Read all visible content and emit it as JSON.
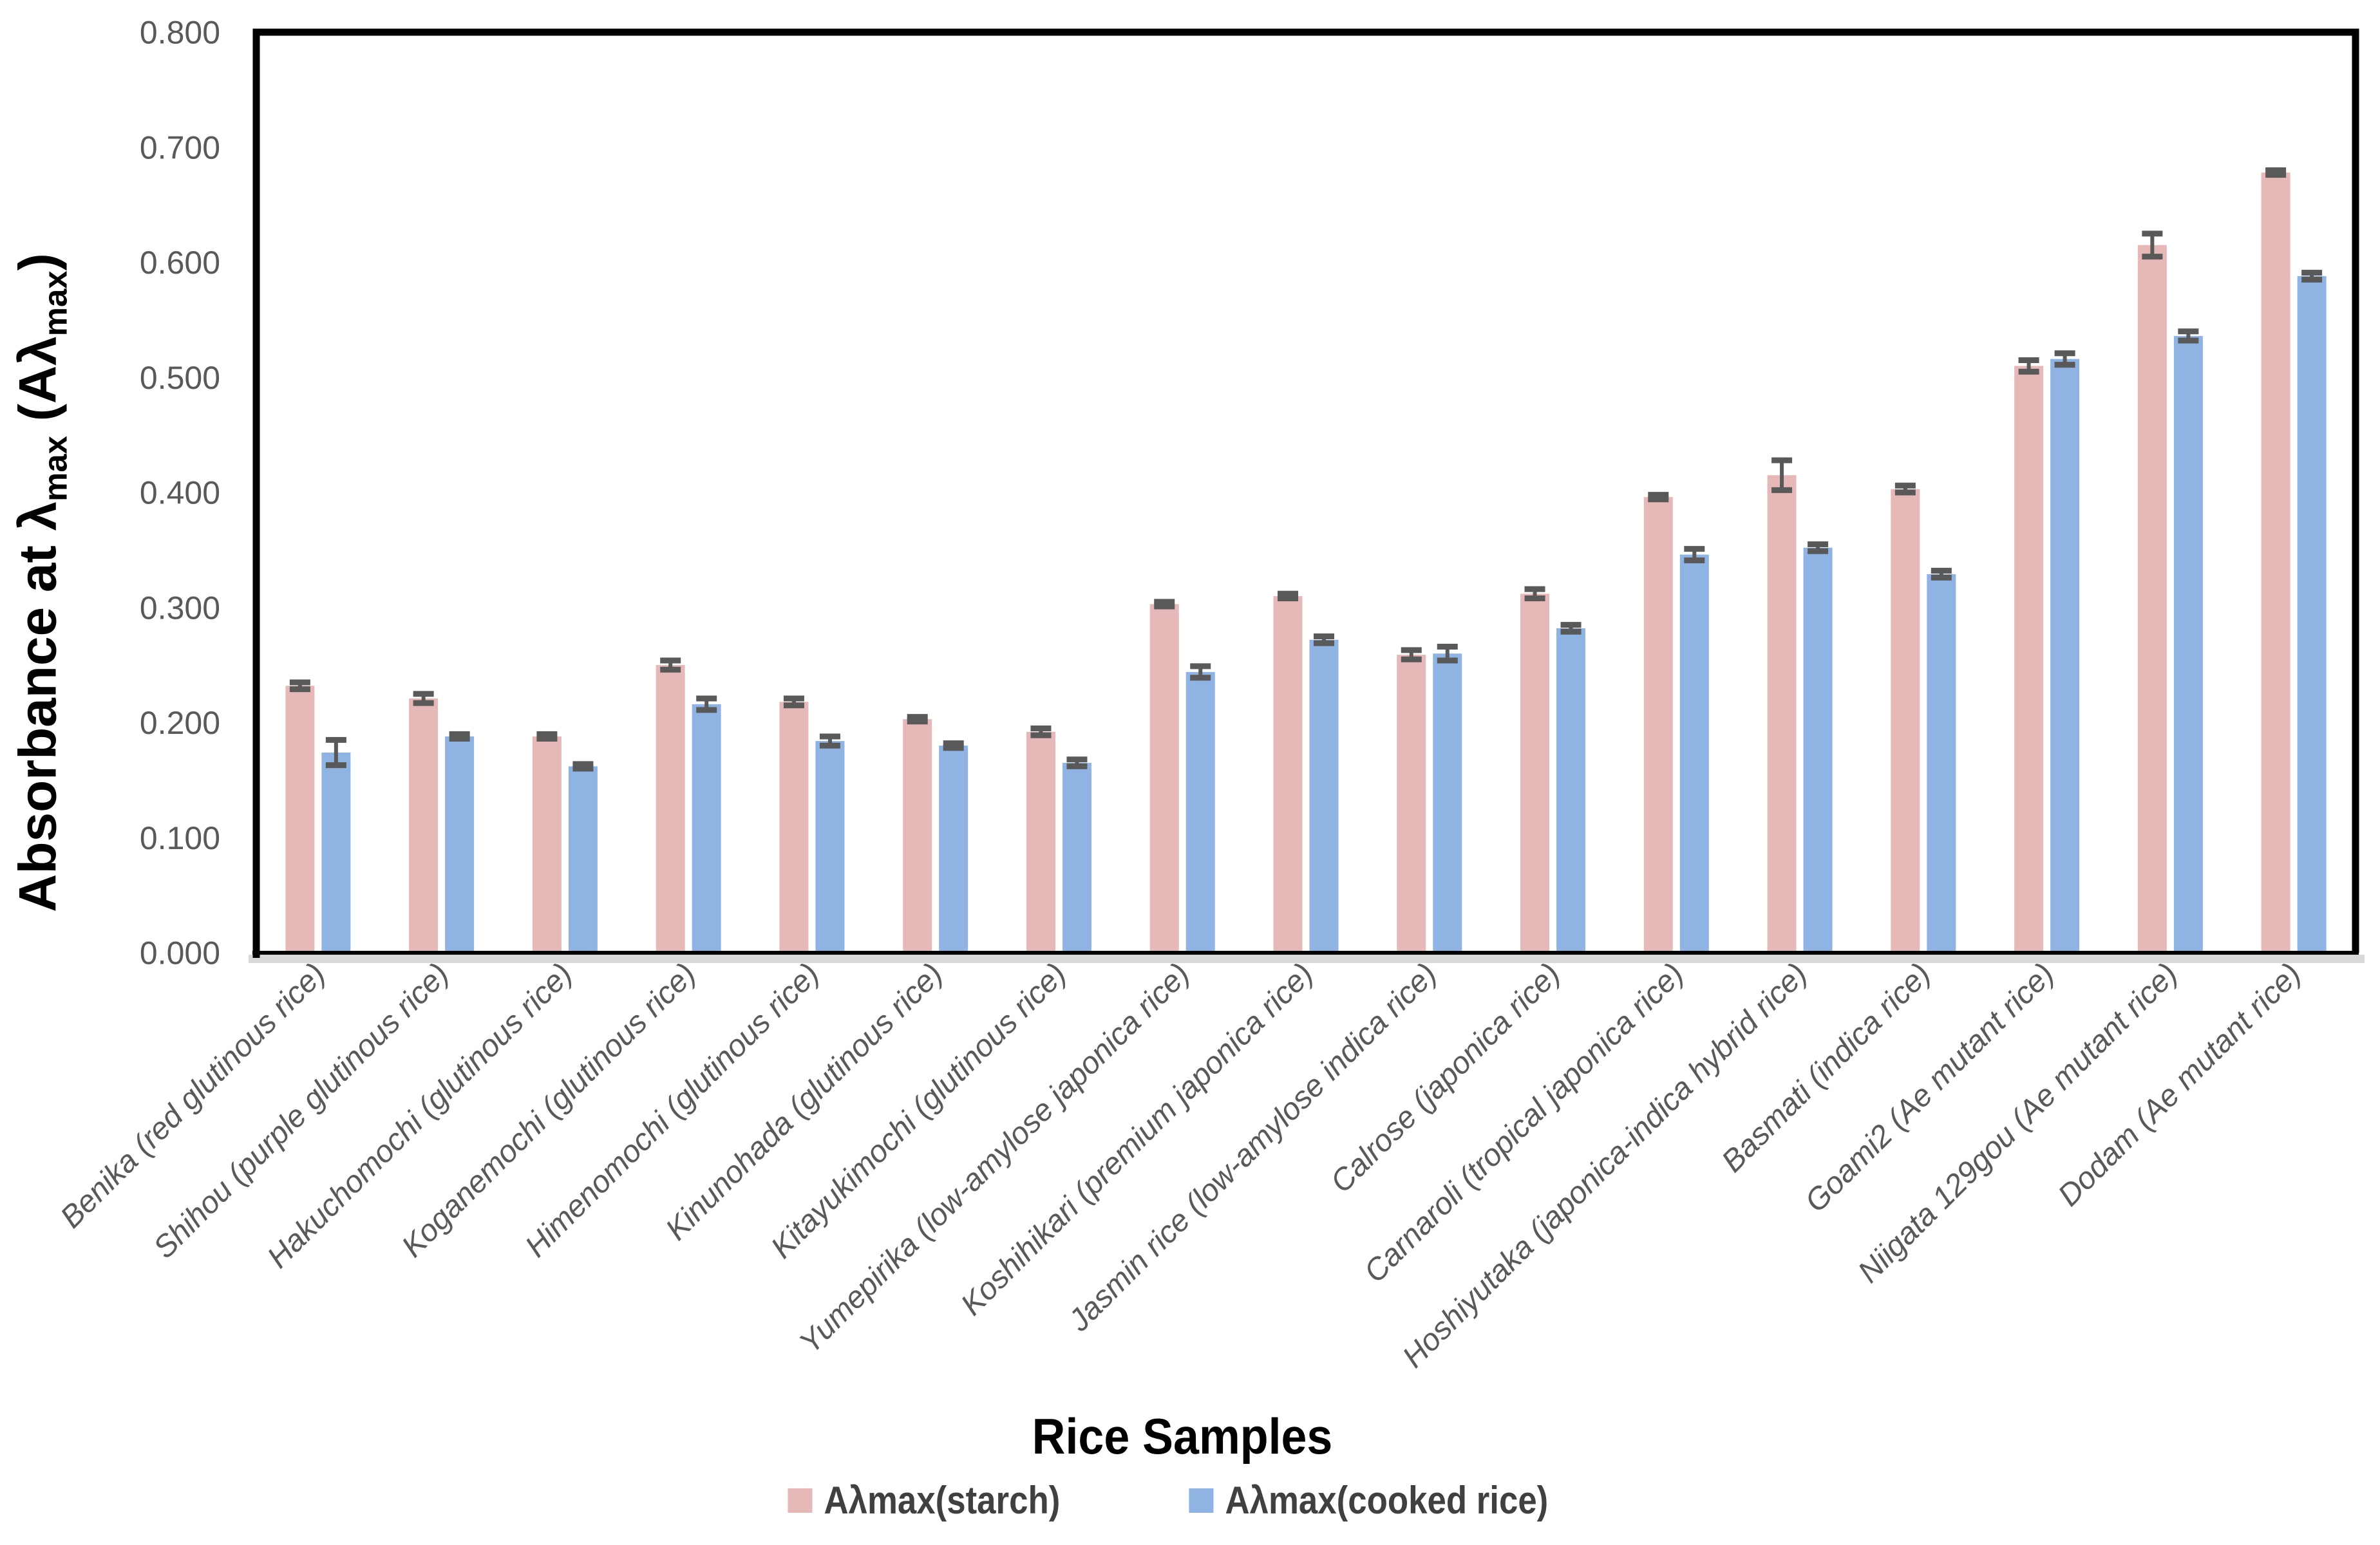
{
  "chart_data": {
    "type": "bar",
    "title": "",
    "xlabel": "Rice Samples",
    "ylabel": {
      "prefix": "Absorbance at λ",
      "sub1": "max",
      "mid": " (Aλ",
      "sub2": "max",
      "suffix": ")"
    },
    "ylim": [
      0.0,
      0.8
    ],
    "ytick_step": 0.1,
    "ytick_decimals": 3,
    "grid": false,
    "legend_position": "bottom",
    "categories": [
      "Benika (red glutinous rice)",
      "Shihou (purple glutinous rice)",
      "Hakuchomochi (glutinous rice)",
      "Koganemochi (glutinous rice)",
      "Himenomochi (glutinous rice)",
      "Kinunohada (glutinous rice)",
      "Kitayukimochi (glutinous rice)",
      "Yumepirika (low-amylose japonica rice)",
      "Koshihikari (premium japonica rice)",
      "Jasmin rice (low-amylose indica rice)",
      "Calrose (japonica rice)",
      "Carnaroli (tropical japonica rice)",
      "Hoshiyutaka (japonica-indica hybrid rice)",
      "Basmati (indica rice)",
      "Goami2 (Ae mutant rice)",
      "Niigata 129gou (Ae mutant rice)",
      "Dodam (Ae mutant rice)"
    ],
    "series": [
      {
        "name": "Aλmax(starch)",
        "color": "#E6B9B8",
        "values": [
          0.232,
          0.221,
          0.188,
          0.25,
          0.218,
          0.203,
          0.192,
          0.303,
          0.31,
          0.259,
          0.312,
          0.396,
          0.415,
          0.403,
          0.51,
          0.615,
          0.678
        ],
        "errors": [
          0.003,
          0.004,
          0.002,
          0.004,
          0.003,
          0.002,
          0.003,
          0.002,
          0.002,
          0.004,
          0.004,
          0.002,
          0.013,
          0.003,
          0.005,
          0.01,
          0.002
        ]
      },
      {
        "name": "Aλmax(cooked rice)",
        "color": "#8FB3E3",
        "values": [
          0.174,
          0.188,
          0.162,
          0.216,
          0.184,
          0.18,
          0.165,
          0.244,
          0.272,
          0.26,
          0.282,
          0.346,
          0.352,
          0.329,
          0.516,
          0.536,
          0.588
        ],
        "errors": [
          0.011,
          0.002,
          0.002,
          0.005,
          0.004,
          0.002,
          0.003,
          0.005,
          0.003,
          0.006,
          0.003,
          0.005,
          0.003,
          0.003,
          0.005,
          0.004,
          0.003
        ]
      }
    ],
    "error_bar_color": "#595959",
    "axis_color": "#000000",
    "tick_label_color": "#595959",
    "category_label_color": "#595959",
    "shadow_color": "#D9D9D9"
  }
}
